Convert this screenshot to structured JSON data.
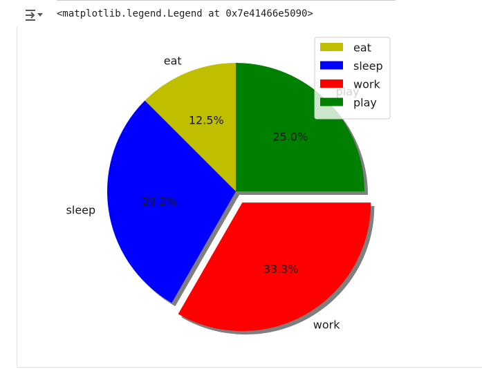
{
  "output": {
    "repr_text": "<matplotlib.legend.Legend at 0x7e41466e5090>",
    "icon": "output-toggle-icon"
  },
  "chart_data": {
    "type": "pie",
    "categories": [
      "eat",
      "sleep",
      "work",
      "play"
    ],
    "values": [
      12.5,
      29.2,
      33.3,
      25.0
    ],
    "pct_labels": [
      "12.5%",
      "29.2%",
      "33.3%",
      "25.0%"
    ],
    "colors": [
      "#bfbf00",
      "#0000ff",
      "#ff0000",
      "#008000"
    ],
    "explode": [
      0,
      0,
      0.1,
      0
    ],
    "shadow": true,
    "start_angle_deg": 90,
    "counterclock": true,
    "legend": {
      "entries": [
        "eat",
        "sleep",
        "work",
        "play"
      ],
      "placement": "upper right"
    }
  }
}
